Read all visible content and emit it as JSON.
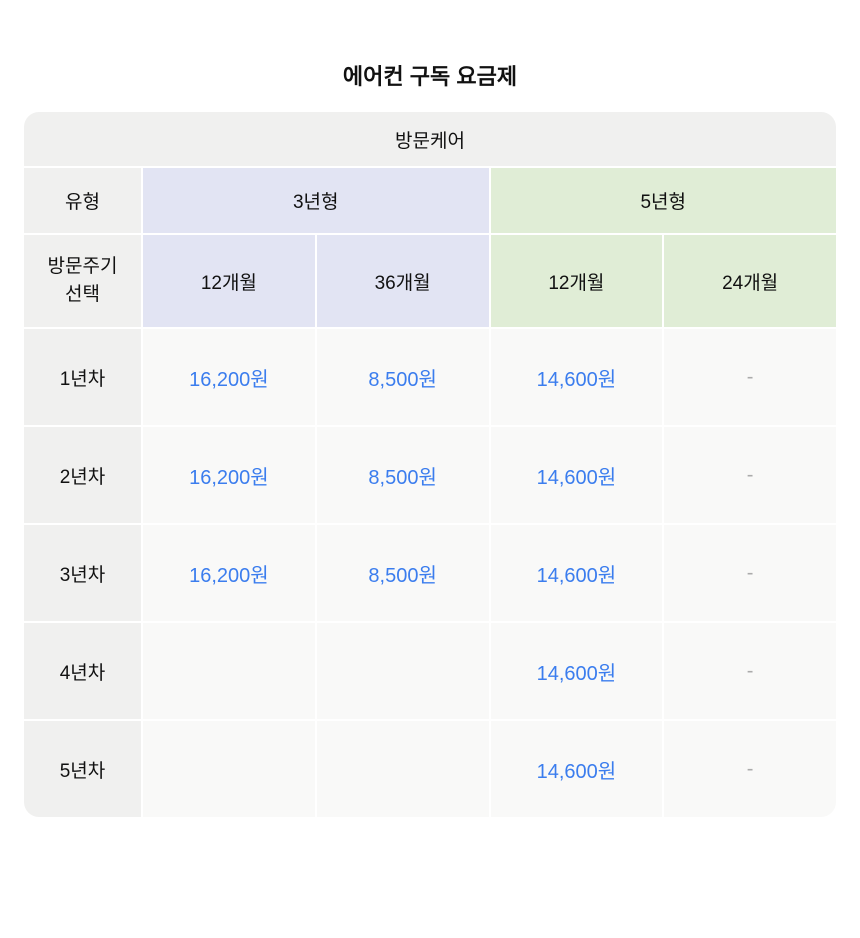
{
  "page": {
    "title": "에어컨 구독 요금제"
  },
  "table": {
    "care_header": "방문케어",
    "type_row": {
      "label": "유형",
      "plans": [
        {
          "name": "3년형",
          "span": 2,
          "theme": "lavender"
        },
        {
          "name": "5년형",
          "span": 2,
          "theme": "green"
        }
      ]
    },
    "cycle_row": {
      "label": "방문주기\n선택",
      "cycles": [
        {
          "name": "12개월",
          "theme": "lavender"
        },
        {
          "name": "36개월",
          "theme": "lavender"
        },
        {
          "name": "12개월",
          "theme": "green"
        },
        {
          "name": "24개월",
          "theme": "green"
        }
      ]
    },
    "rows": [
      {
        "label": "1년차",
        "values": [
          "16,200원",
          "8,500원",
          "14,600원",
          "-"
        ]
      },
      {
        "label": "2년차",
        "values": [
          "16,200원",
          "8,500원",
          "14,600원",
          "-"
        ]
      },
      {
        "label": "3년차",
        "values": [
          "16,200원",
          "8,500원",
          "14,600원",
          "-"
        ]
      },
      {
        "label": "4년차",
        "values": [
          "",
          "",
          "14,600원",
          "-"
        ]
      },
      {
        "label": "5년차",
        "values": [
          "",
          "",
          "14,600원",
          "-"
        ]
      }
    ]
  },
  "colors": {
    "label_bg": "#F0F0EF",
    "lavender_bg": "#E2E4F3",
    "green_bg": "#E0EDD6",
    "cell_bg": "#F9F9F8",
    "price_text": "#3B7DEE",
    "dash_text": "#ABABAB",
    "text": "#111111"
  }
}
